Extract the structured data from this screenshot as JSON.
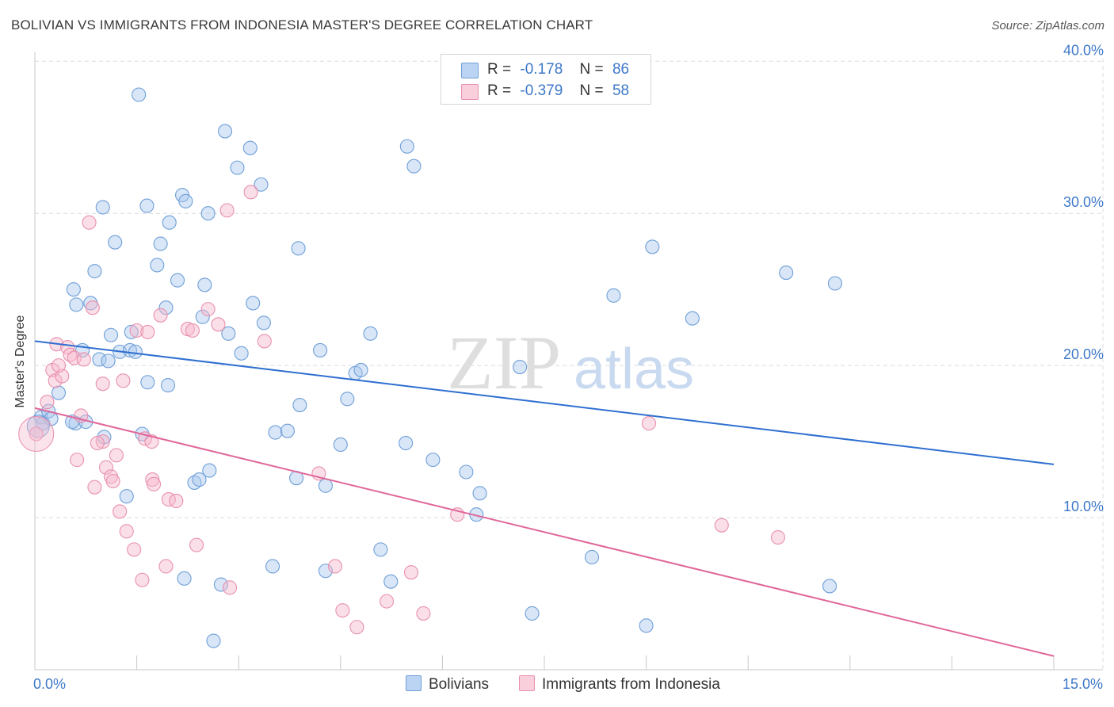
{
  "header": {
    "title": "BOLIVIAN VS IMMIGRANTS FROM INDONESIA MASTER'S DEGREE CORRELATION CHART",
    "source": "Source: ZipAtlas.com"
  },
  "legend": {
    "series1": {
      "r_label": "R =",
      "r_value": "-0.178",
      "n_label": "N =",
      "n_value": "86"
    },
    "series2": {
      "r_label": "R =",
      "r_value": "-0.379",
      "n_label": "N =",
      "n_value": "58"
    }
  },
  "bottom_legend": {
    "series1": "Bolivians",
    "series2": "Immigrants from Indonesia"
  },
  "watermark": {
    "zip": "ZIP",
    "atlas": "atlas"
  },
  "colors": {
    "blue_fill": "#a8c8ee",
    "blue_stroke": "#6f9fd8",
    "blue_line": "#2f6fd0",
    "pink_fill": "#f6b9cc",
    "pink_stroke": "#e890ae",
    "pink_line": "#e0679a",
    "tick_text": "#3d78c8",
    "grid": "#dcdcdc"
  },
  "chart_data": {
    "type": "scatter",
    "title": "BOLIVIAN VS IMMIGRANTS FROM INDONESIA MASTER'S DEGREE CORRELATION CHART",
    "xlabel": "",
    "ylabel": "Master's Degree",
    "xlim": [
      0,
      15
    ],
    "ylim": [
      0,
      40.9
    ],
    "x_tick_labels": [
      {
        "value": 0,
        "label": "0.0%"
      },
      {
        "value": 15,
        "label": "15.0%"
      }
    ],
    "y_tick_labels": [
      {
        "value": 10,
        "label": "10.0%"
      },
      {
        "value": 20,
        "label": "20.0%"
      },
      {
        "value": 30,
        "label": "30.0%"
      },
      {
        "value": 40,
        "label": "40.0%"
      }
    ],
    "grid": true,
    "legend_position": "top-center",
    "series": [
      {
        "name": "Bolivians",
        "color": "#a8c8ee",
        "R": -0.178,
        "N": 86,
        "trend": {
          "x": [
            0,
            15
          ],
          "y": [
            21.6,
            13.5
          ]
        },
        "points": [
          [
            0.09,
            16.6
          ],
          [
            0.12,
            16.2
          ],
          [
            0.2,
            17.0
          ],
          [
            0.24,
            16.5
          ],
          [
            0.35,
            18.2
          ],
          [
            0.6,
            16.2
          ],
          [
            0.55,
            16.3
          ],
          [
            0.75,
            16.3
          ],
          [
            0.57,
            25.0
          ],
          [
            0.61,
            24.0
          ],
          [
            0.82,
            24.1
          ],
          [
            0.88,
            26.2
          ],
          [
            1.12,
            22.0
          ],
          [
            1.18,
            28.1
          ],
          [
            1.42,
            22.2
          ],
          [
            0.7,
            21.0
          ],
          [
            0.95,
            20.4
          ],
          [
            1.08,
            20.3
          ],
          [
            1.25,
            20.9
          ],
          [
            1.4,
            21.0
          ],
          [
            1.02,
            15.3
          ],
          [
            1.35,
            11.4
          ],
          [
            1.58,
            15.5
          ],
          [
            1.0,
            30.4
          ],
          [
            1.53,
            37.8
          ],
          [
            1.65,
            30.5
          ],
          [
            1.85,
            28.0
          ],
          [
            1.8,
            26.6
          ],
          [
            1.98,
            29.4
          ],
          [
            2.1,
            25.6
          ],
          [
            2.17,
            31.2
          ],
          [
            2.22,
            30.8
          ],
          [
            1.93,
            23.8
          ],
          [
            1.66,
            18.9
          ],
          [
            1.96,
            18.7
          ],
          [
            2.35,
            12.3
          ],
          [
            2.42,
            12.5
          ],
          [
            2.57,
            13.1
          ],
          [
            2.47,
            23.2
          ],
          [
            2.5,
            25.3
          ],
          [
            2.55,
            30.0
          ],
          [
            2.8,
            35.4
          ],
          [
            2.85,
            22.1
          ],
          [
            2.98,
            33.0
          ],
          [
            3.17,
            34.3
          ],
          [
            3.33,
            31.9
          ],
          [
            3.21,
            24.1
          ],
          [
            3.04,
            20.8
          ],
          [
            3.37,
            22.8
          ],
          [
            3.88,
            27.7
          ],
          [
            3.54,
            15.6
          ],
          [
            3.72,
            15.7
          ],
          [
            3.9,
            17.4
          ],
          [
            4.2,
            21.0
          ],
          [
            4.28,
            12.1
          ],
          [
            4.5,
            14.8
          ],
          [
            4.6,
            17.8
          ],
          [
            4.72,
            19.5
          ],
          [
            4.8,
            19.7
          ],
          [
            4.94,
            22.1
          ],
          [
            5.09,
            7.9
          ],
          [
            5.24,
            5.8
          ],
          [
            5.48,
            34.4
          ],
          [
            5.58,
            33.1
          ],
          [
            5.46,
            14.9
          ],
          [
            5.86,
            13.8
          ],
          [
            6.35,
            13.0
          ],
          [
            6.55,
            11.6
          ],
          [
            6.5,
            10.2
          ],
          [
            7.14,
            19.9
          ],
          [
            7.32,
            3.7
          ],
          [
            8.2,
            7.4
          ],
          [
            8.52,
            24.6
          ],
          [
            9.09,
            27.8
          ],
          [
            9.0,
            2.9
          ],
          [
            9.68,
            23.1
          ],
          [
            11.06,
            26.1
          ],
          [
            11.78,
            25.4
          ],
          [
            11.7,
            5.5
          ],
          [
            1.48,
            20.9
          ],
          [
            2.2,
            6.0
          ],
          [
            2.74,
            5.6
          ],
          [
            2.63,
            1.9
          ],
          [
            3.5,
            6.8
          ],
          [
            4.28,
            6.5
          ],
          [
            3.85,
            12.6
          ]
        ]
      },
      {
        "name": "Immigrants from Indonesia",
        "color": "#f6b9cc",
        "R": -0.379,
        "N": 58,
        "trend": {
          "x": [
            0,
            15
          ],
          "y": [
            17.2,
            0.9
          ]
        },
        "points": [
          [
            0.02,
            15.5
          ],
          [
            0.18,
            17.6
          ],
          [
            0.26,
            19.7
          ],
          [
            0.3,
            19.0
          ],
          [
            0.4,
            19.3
          ],
          [
            0.32,
            21.4
          ],
          [
            0.48,
            21.2
          ],
          [
            0.52,
            20.7
          ],
          [
            0.58,
            20.5
          ],
          [
            0.72,
            20.4
          ],
          [
            0.68,
            16.7
          ],
          [
            0.62,
            13.8
          ],
          [
            0.85,
            23.8
          ],
          [
            0.8,
            29.4
          ],
          [
            0.88,
            12.0
          ],
          [
            1.0,
            15.0
          ],
          [
            1.05,
            13.3
          ],
          [
            1.12,
            12.7
          ],
          [
            1.15,
            12.4
          ],
          [
            1.2,
            14.1
          ],
          [
            1.35,
            9.1
          ],
          [
            1.46,
            7.9
          ],
          [
            1.58,
            5.9
          ],
          [
            1.62,
            15.2
          ],
          [
            1.72,
            15.0
          ],
          [
            1.73,
            12.5
          ],
          [
            1.75,
            12.2
          ],
          [
            1.5,
            22.3
          ],
          [
            1.66,
            22.2
          ],
          [
            1.85,
            23.3
          ],
          [
            1.93,
            6.8
          ],
          [
            1.97,
            11.2
          ],
          [
            2.08,
            11.1
          ],
          [
            2.25,
            22.4
          ],
          [
            2.32,
            22.3
          ],
          [
            2.38,
            8.2
          ],
          [
            2.55,
            23.7
          ],
          [
            2.7,
            22.7
          ],
          [
            2.83,
            30.2
          ],
          [
            2.87,
            5.4
          ],
          [
            3.18,
            31.4
          ],
          [
            3.38,
            21.6
          ],
          [
            1.0,
            18.8
          ],
          [
            1.3,
            19.0
          ],
          [
            4.18,
            12.9
          ],
          [
            4.42,
            6.8
          ],
          [
            4.53,
            3.9
          ],
          [
            4.74,
            2.8
          ],
          [
            5.18,
            4.5
          ],
          [
            5.54,
            6.4
          ],
          [
            5.72,
            3.7
          ],
          [
            6.22,
            10.2
          ],
          [
            9.04,
            16.2
          ],
          [
            10.11,
            9.5
          ],
          [
            10.94,
            8.7
          ],
          [
            0.35,
            20.0
          ],
          [
            0.92,
            14.9
          ],
          [
            1.25,
            10.4
          ]
        ]
      }
    ]
  }
}
